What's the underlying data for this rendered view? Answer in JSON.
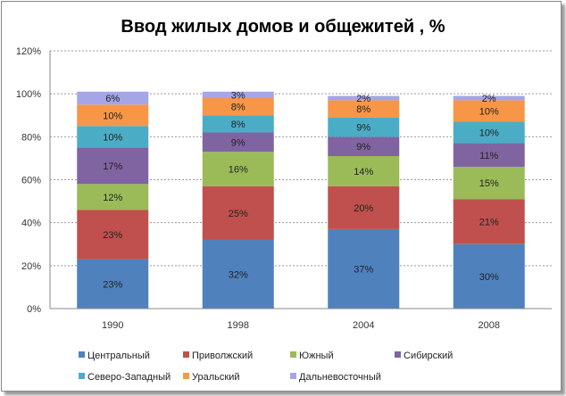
{
  "chart_data": {
    "type": "bar",
    "stacked": true,
    "title": "Ввод жилых домов и общежитей , %",
    "categories": [
      "1990",
      "1998",
      "2004",
      "2008"
    ],
    "ylim": [
      0,
      120
    ],
    "yticks": [
      "0%",
      "20%",
      "40%",
      "60%",
      "80%",
      "100%",
      "120%"
    ],
    "ytick_values": [
      0,
      20,
      40,
      60,
      80,
      100,
      120
    ],
    "grid": true,
    "legend_position": "bottom",
    "series": [
      {
        "name": "Центральный",
        "color": "#4F81BD",
        "values": [
          23,
          32,
          37,
          30
        ]
      },
      {
        "name": "Приволжский",
        "color": "#C0504D",
        "values": [
          23,
          25,
          20,
          21
        ]
      },
      {
        "name": "Южный",
        "color": "#9BBB59",
        "values": [
          12,
          16,
          14,
          15
        ]
      },
      {
        "name": "Сибирский",
        "color": "#8064A2",
        "values": [
          17,
          9,
          9,
          11
        ]
      },
      {
        "name": "Северо-Западный",
        "color": "#4BACC6",
        "values": [
          10,
          8,
          9,
          10
        ]
      },
      {
        "name": "Уральский",
        "color": "#F79646",
        "values": [
          10,
          8,
          8,
          10
        ]
      },
      {
        "name": "Дальневосточный",
        "color": "#A5A5E8",
        "values": [
          6,
          3,
          2,
          2
        ]
      }
    ]
  }
}
